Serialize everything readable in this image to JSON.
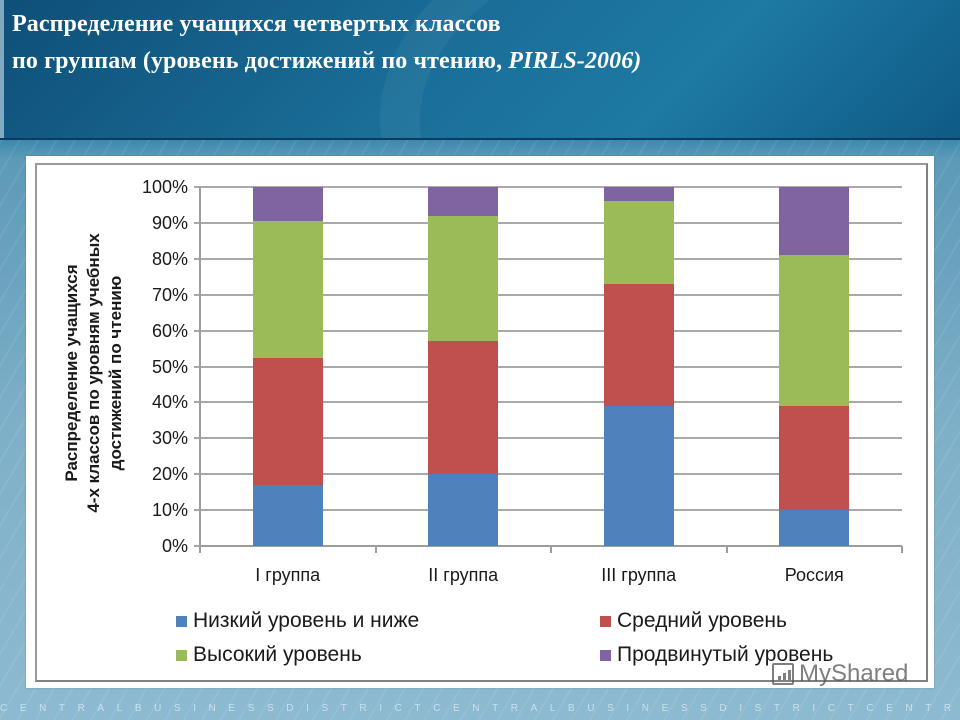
{
  "slide": {
    "title_line1": "Распределение учащихся четвертых классов",
    "title_line2_prefix": "по группам (уровень достижений по чтению, ",
    "title_line2_italic": "PIRLS-2006)",
    "footer_text": "CENTRALBUSINESSDISTRICTCENTRALBUSINESSDISTRICTCENTRA",
    "watermark": "MyShared"
  },
  "chart_data": {
    "type": "bar",
    "stacked": true,
    "percent_stacked": true,
    "title": "Распределение учащихся четвертых классов по группам (уровень достижений по чтению, PIRLS-2006)",
    "xlabel": "",
    "ylabel": "Распределение учащихся 4-х классов по уровням учебных достижений по чтению",
    "ylabel_lines": [
      "Распределение учащихся",
      "4-х классов по уровням учебных",
      "достижений по чтению"
    ],
    "ylim": [
      0,
      100
    ],
    "yticks": [
      "0%",
      "10%",
      "20%",
      "30%",
      "40%",
      "50%",
      "60%",
      "70%",
      "80%",
      "90%",
      "100%"
    ],
    "grid": true,
    "legend_position": "bottom",
    "categories": [
      "I группа",
      "II группа",
      "III группа",
      "Россия"
    ],
    "series": [
      {
        "name": "Низкий уровень и ниже",
        "color": "#4f81bd",
        "values": [
          17,
          20,
          39,
          10
        ]
      },
      {
        "name": "Средний уровень",
        "color": "#c0504d",
        "values": [
          35.5,
          37,
          34,
          29
        ]
      },
      {
        "name": "Высокий уровень",
        "color": "#9bbb59",
        "values": [
          38,
          35,
          23,
          42
        ]
      },
      {
        "name": "Продвинутый уровень",
        "color": "#8064a2",
        "values": [
          9.5,
          8,
          4,
          19
        ]
      }
    ]
  }
}
